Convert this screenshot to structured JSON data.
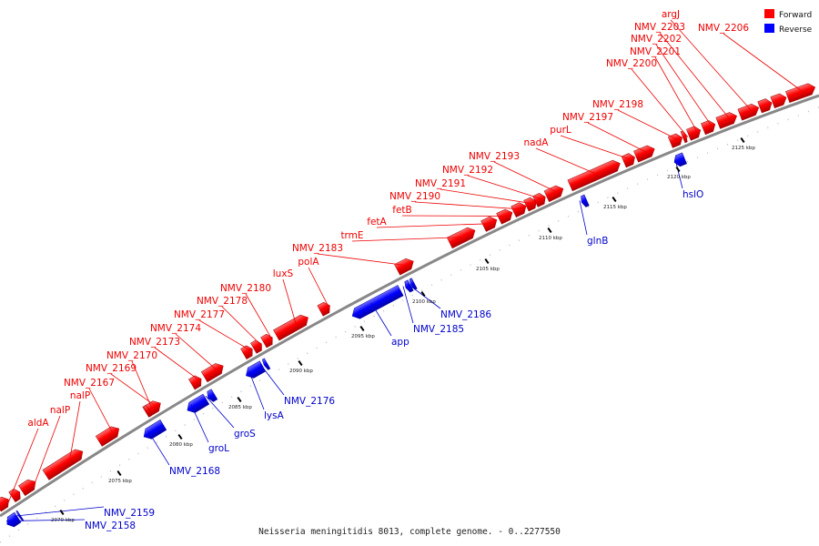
{
  "caption": "Neisseria meningitidis 8013, complete genome. - 0..2277550",
  "legend": [
    {
      "label": "Forward",
      "color": "#ff0000"
    },
    {
      "label": "Reverse",
      "color": "#0000ff"
    }
  ],
  "colors": {
    "forward": "#ff0000",
    "reverse": "#0000ff",
    "backbone": "#888888"
  },
  "scale_marks": [
    "2070 kbp",
    "2075 kbp",
    "2080 kbp",
    "2085 kbp",
    "2090 kbp",
    "2095 kbp",
    "2100 kbp",
    "2105 kbp",
    "2110 kbp",
    "2115 kbp",
    "2120 kbp",
    "2125 kbp"
  ],
  "forward_labels": [
    "aldA",
    "nalP",
    "nalP",
    "NMV_2167",
    "NMV_2169",
    "NMV_2170",
    "NMV_2173",
    "NMV_2174",
    "NMV_2177",
    "NMV_2178",
    "NMV_2180",
    "luxS",
    "polA",
    "NMV_2183",
    "trmE",
    "fetA",
    "fetB",
    "NMV_2190",
    "NMV_2191",
    "NMV_2192",
    "NMV_2193",
    "nadA",
    "purL",
    "NMV_2197",
    "NMV_2198",
    "NMV_2200",
    "NMV_2201",
    "NMV_2202",
    "NMV_2203",
    "argJ",
    "NMV_2206"
  ],
  "reverse_labels": [
    "NMV_2158",
    "NMV_2159",
    "NMV_2168",
    "groL",
    "groS",
    "lysA",
    "NMV_2176",
    "app",
    "NMV_2185",
    "NMV_2186",
    "glnB",
    "hslO"
  ]
}
